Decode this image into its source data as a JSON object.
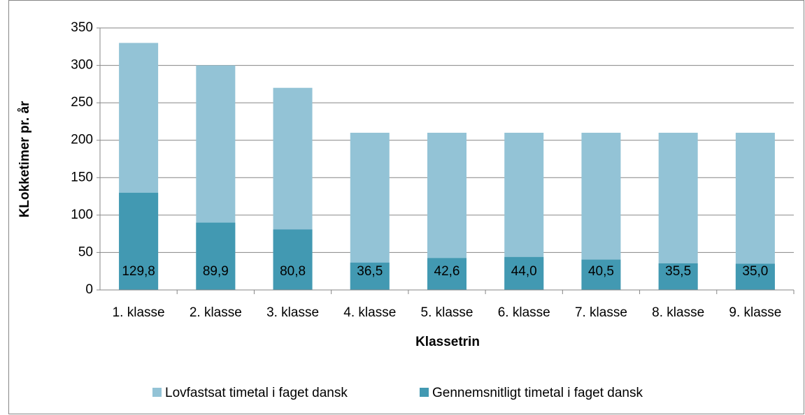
{
  "chart_data": {
    "type": "bar",
    "overlap": true,
    "x_label": "Klassetrin",
    "y_label": "KLokketimer pr. år",
    "categories": [
      "1. klasse",
      "2. klasse",
      "3. klasse",
      "4. klasse",
      "5. klasse",
      "6. klasse",
      "7. klasse",
      "8. klasse",
      "9. klasse"
    ],
    "series": [
      {
        "name": "Lovfastsat timetal i faget dansk",
        "color": "#93c3d6",
        "values": [
          330,
          300,
          270,
          210,
          210,
          210,
          210,
          210,
          210
        ]
      },
      {
        "name": "Gennemsnitligt timetal i faget dansk",
        "color": "#4299b2",
        "values": [
          129.8,
          89.9,
          80.8,
          36.5,
          42.6,
          44.0,
          40.5,
          35.5,
          35.0
        ],
        "value_labels": [
          "129,8",
          "89,9",
          "80,8",
          "36,5",
          "42,6",
          "44,0",
          "40,5",
          "35,5",
          "35,0"
        ]
      }
    ],
    "ylim": [
      0,
      350
    ],
    "yticks": [
      0,
      50,
      100,
      150,
      200,
      250,
      300,
      350
    ],
    "grid": true
  }
}
